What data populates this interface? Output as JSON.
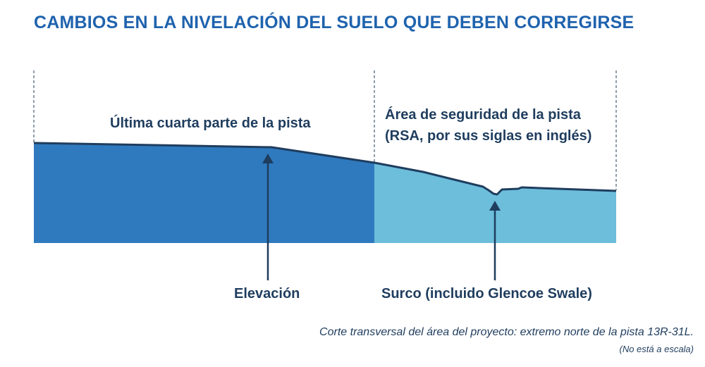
{
  "title": "CAMBIOS EN LA NIVELACIÓN DEL SUELO QUE DEBEN CORREGIRSE",
  "regions": {
    "runway_label": "Última cuarta parte de la pista",
    "rsa_label_line1": "Área de seguridad de la pista",
    "rsa_label_line2": "(RSA, por sus siglas en inglés)"
  },
  "callouts": {
    "elevation": "Elevación",
    "swale": "Surco (incluido Glencoe Swale)"
  },
  "caption": "Corte transversal del área del proyecto: extremo norte de la pista 13R-31L.",
  "note": "(No está a escala)",
  "colors": {
    "title": "#1f63ae",
    "runway_fill": "#2f7abf",
    "rsa_fill": "#6cbedb",
    "text": "#1f3d5e"
  }
}
